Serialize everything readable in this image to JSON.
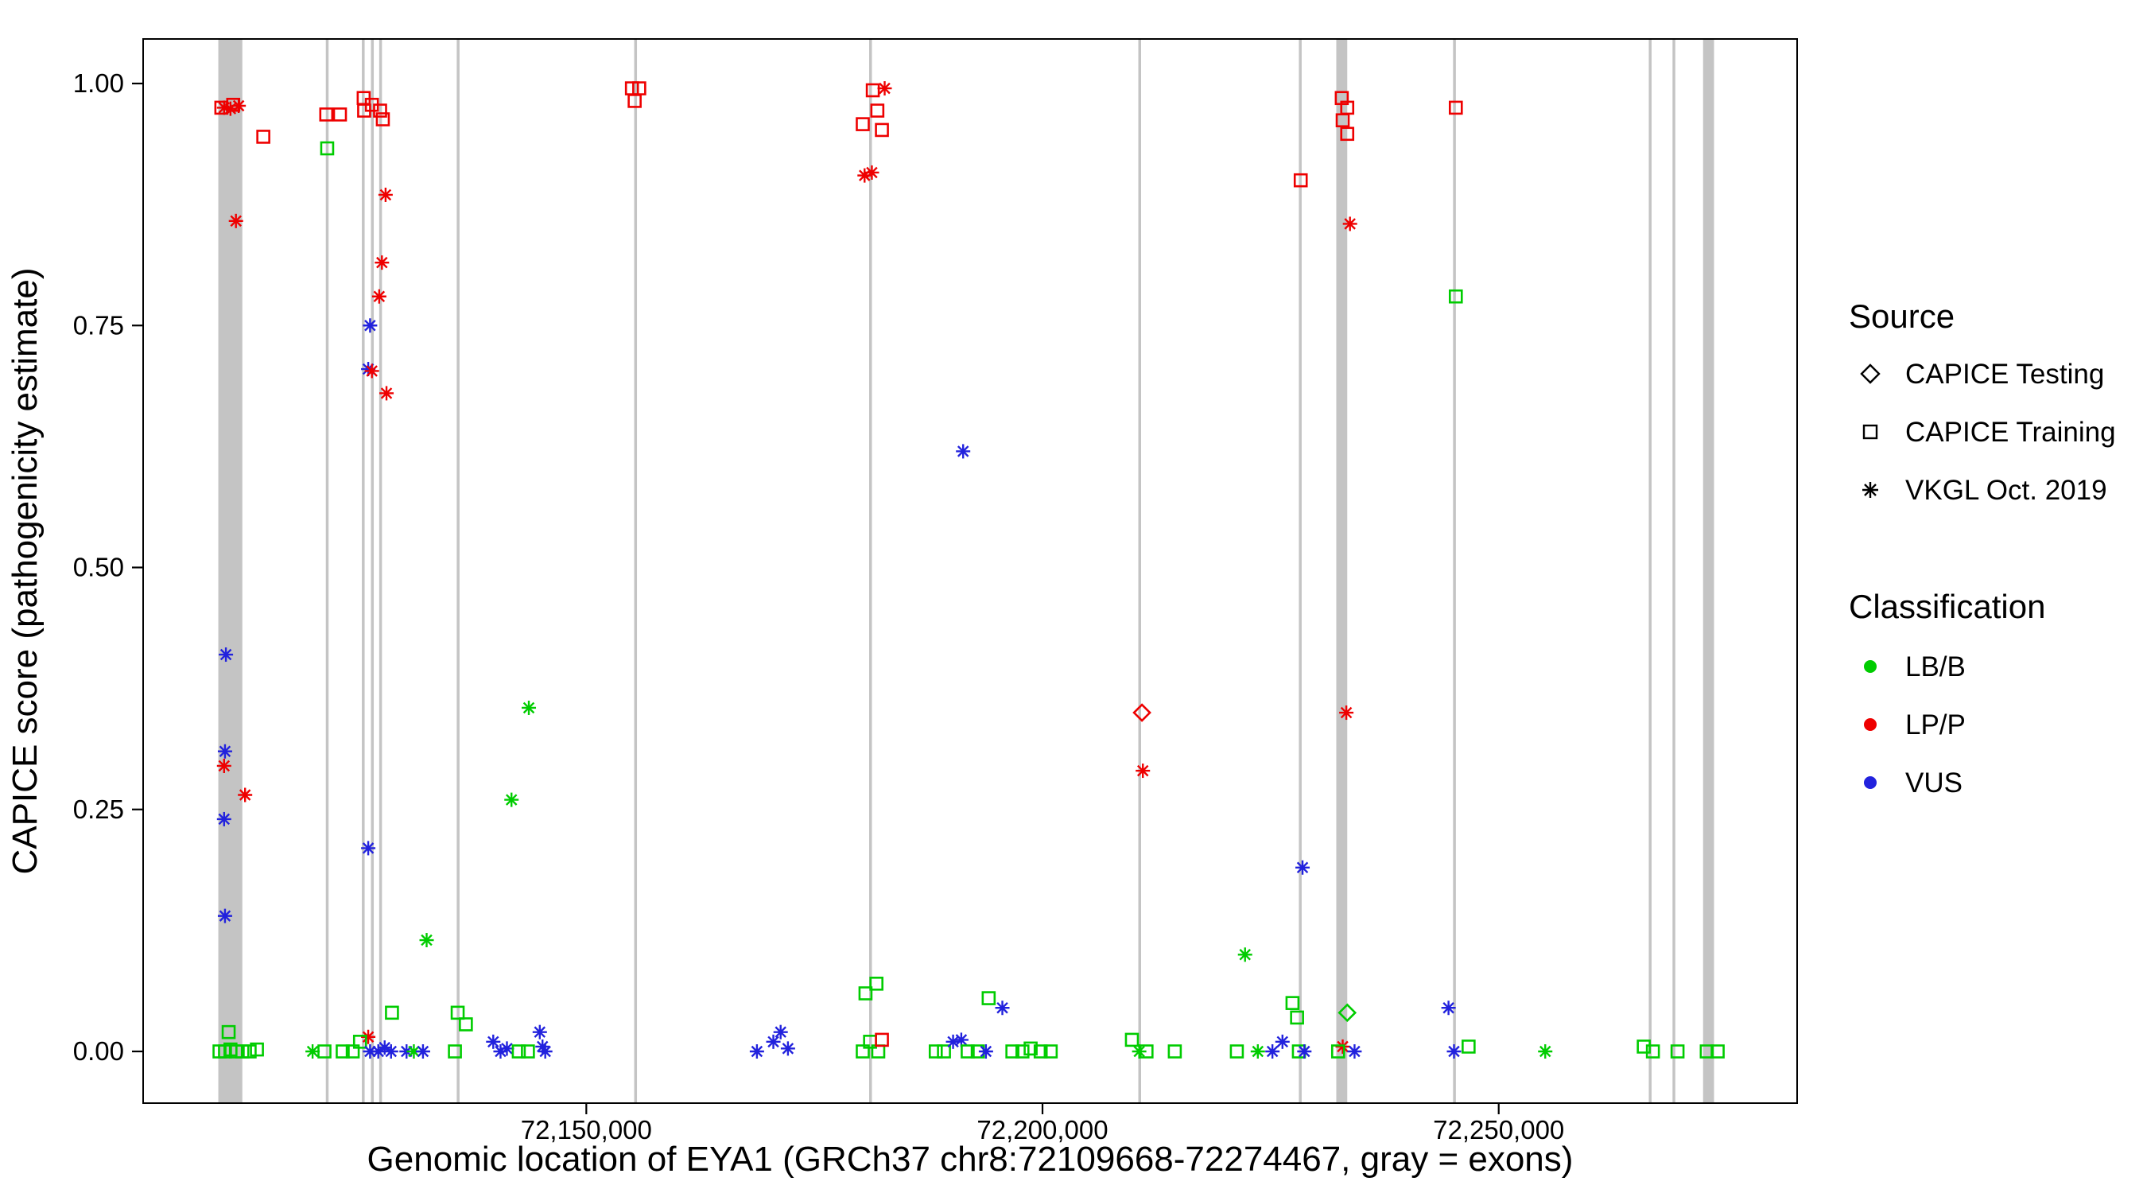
{
  "figure": {
    "y_axis": {
      "title": "CAPICE score (pathogenicity estimate)"
    },
    "x_axis": {
      "title": "Genomic location of EYA1 (GRCh37 chr8:72109668-72274467, gray = exons)"
    }
  },
  "legend": {
    "source": {
      "title": "Source",
      "items": [
        {
          "label": "CAPICE Testing",
          "shape": "diamond"
        },
        {
          "label": "CAPICE Training",
          "shape": "square"
        },
        {
          "label": "VKGL Oct. 2019",
          "shape": "asterisk"
        }
      ]
    },
    "classification": {
      "title": "Classification",
      "items": [
        {
          "label": "LB/B",
          "color": "#00cc00"
        },
        {
          "label": "LP/P",
          "color": "#ee0000"
        },
        {
          "label": "VUS",
          "color": "#2222dd"
        }
      ]
    }
  },
  "chart_data": {
    "type": "scatter",
    "title": "",
    "xlabel": "Genomic location of EYA1 (GRCh37 chr8:72109668-72274467, gray = exons)",
    "ylabel": "CAPICE score (pathogenicity estimate)",
    "xlim": [
      72109668,
      72274467
    ],
    "ylim": [
      0,
      1
    ],
    "grid": "off",
    "legend_position": "right",
    "x_ticks": [
      {
        "value": 72150000,
        "label": "72,150,000"
      },
      {
        "value": 72200000,
        "label": "72,200,000"
      },
      {
        "value": 72250000,
        "label": "72,250,000"
      }
    ],
    "y_ticks": [
      {
        "value": 0.0,
        "label": "0.00"
      },
      {
        "value": 0.25,
        "label": "0.25"
      },
      {
        "value": 0.5,
        "label": "0.50"
      },
      {
        "value": 0.75,
        "label": "0.75"
      },
      {
        "value": 1.0,
        "label": "1.00"
      }
    ],
    "shape_map": {
      "sq": "CAPICE Training",
      "di": "CAPICE Testing",
      "as": "VKGL Oct. 2019"
    },
    "class_map": {
      "B": "LB/B",
      "P": "LP/P",
      "V": "VUS"
    },
    "class_colors": {
      "B": "#00cc00",
      "P": "#ee0000",
      "V": "#2222dd"
    },
    "exon_color": "#c4c4c4",
    "exons": [
      [
        72109668,
        72112300
      ],
      [
        72121450,
        72121650
      ],
      [
        72125400,
        72125600
      ],
      [
        72126400,
        72126600
      ],
      [
        72127300,
        72127500
      ],
      [
        72135800,
        72136000
      ],
      [
        72155250,
        72155450
      ],
      [
        72181000,
        72181200
      ],
      [
        72210500,
        72210700
      ],
      [
        72228100,
        72228300
      ],
      [
        72232200,
        72233400
      ],
      [
        72245000,
        72245200
      ],
      [
        72266450,
        72266650
      ],
      [
        72269050,
        72269250
      ],
      [
        72272400,
        72273600
      ]
    ],
    "points": [
      [
        72110000,
        0.975,
        "sq",
        "P"
      ],
      [
        72111300,
        0.978,
        "sq",
        "P"
      ],
      [
        72110300,
        0.975,
        "as",
        "P"
      ],
      [
        72111000,
        0.974,
        "as",
        "P"
      ],
      [
        72111900,
        0.977,
        "as",
        "P"
      ],
      [
        72114600,
        0.945,
        "sq",
        "P"
      ],
      [
        72111600,
        0.858,
        "as",
        "P"
      ],
      [
        72110500,
        0.41,
        "as",
        "V"
      ],
      [
        72110400,
        0.31,
        "as",
        "V"
      ],
      [
        72110300,
        0.295,
        "as",
        "P"
      ],
      [
        72112600,
        0.265,
        "as",
        "P"
      ],
      [
        72110300,
        0.24,
        "as",
        "V"
      ],
      [
        72110400,
        0.14,
        "as",
        "V"
      ],
      [
        72110800,
        0.02,
        "sq",
        "B"
      ],
      [
        72109800,
        0,
        "sq",
        "B"
      ],
      [
        72110400,
        0,
        "sq",
        "B"
      ],
      [
        72111000,
        0.002,
        "sq",
        "B"
      ],
      [
        72111600,
        0,
        "sq",
        "B"
      ],
      [
        72112300,
        0,
        "sq",
        "B"
      ],
      [
        72113100,
        0,
        "sq",
        "B"
      ],
      [
        72113900,
        0.002,
        "sq",
        "B"
      ],
      [
        72120000,
        0,
        "as",
        "B"
      ],
      [
        72121300,
        0,
        "sq",
        "B"
      ],
      [
        72123300,
        0,
        "sq",
        "B"
      ],
      [
        72121500,
        0.968,
        "sq",
        "P"
      ],
      [
        72123000,
        0.968,
        "sq",
        "P"
      ],
      [
        72121600,
        0.933,
        "sq",
        "B"
      ],
      [
        72125600,
        0.985,
        "sq",
        "P"
      ],
      [
        72125650,
        0.972,
        "sq",
        "P"
      ],
      [
        72126500,
        0.978,
        "sq",
        "P"
      ],
      [
        72127400,
        0.972,
        "sq",
        "P"
      ],
      [
        72127700,
        0.963,
        "sq",
        "P"
      ],
      [
        72128000,
        0.885,
        "as",
        "P"
      ],
      [
        72127600,
        0.815,
        "as",
        "P"
      ],
      [
        72127300,
        0.78,
        "as",
        "P"
      ],
      [
        72126300,
        0.75,
        "as",
        "V"
      ],
      [
        72126100,
        0.705,
        "as",
        "V"
      ],
      [
        72126500,
        0.703,
        "as",
        "P"
      ],
      [
        72128100,
        0.68,
        "as",
        "P"
      ],
      [
        72126100,
        0.21,
        "as",
        "V"
      ],
      [
        72126100,
        0.015,
        "as",
        "P"
      ],
      [
        72124400,
        0,
        "sq",
        "B"
      ],
      [
        72125200,
        0.01,
        "sq",
        "B"
      ],
      [
        72126300,
        0,
        "as",
        "V"
      ],
      [
        72127200,
        0,
        "as",
        "V"
      ],
      [
        72127900,
        0.004,
        "as",
        "V"
      ],
      [
        72128600,
        0,
        "as",
        "V"
      ],
      [
        72128700,
        0.04,
        "sq",
        "B"
      ],
      [
        72130300,
        0,
        "as",
        "V"
      ],
      [
        72131100,
        0,
        "as",
        "B"
      ],
      [
        72132100,
        0,
        "as",
        "V"
      ],
      [
        72132500,
        0.115,
        "as",
        "B"
      ],
      [
        72135900,
        0.04,
        "sq",
        "B"
      ],
      [
        72136800,
        0.028,
        "sq",
        "B"
      ],
      [
        72135600,
        0,
        "sq",
        "B"
      ],
      [
        72143700,
        0.355,
        "as",
        "B"
      ],
      [
        72141800,
        0.26,
        "as",
        "B"
      ],
      [
        72139800,
        0.01,
        "as",
        "V"
      ],
      [
        72140600,
        0,
        "as",
        "V"
      ],
      [
        72141300,
        0.003,
        "as",
        "V"
      ],
      [
        72142600,
        0,
        "sq",
        "B"
      ],
      [
        72143600,
        0,
        "sq",
        "B"
      ],
      [
        72144900,
        0.02,
        "as",
        "V"
      ],
      [
        72145200,
        0.005,
        "as",
        "V"
      ],
      [
        72145500,
        0,
        "as",
        "V"
      ],
      [
        72155000,
        0.995,
        "sq",
        "P"
      ],
      [
        72155800,
        0.995,
        "sq",
        "P"
      ],
      [
        72155300,
        0.982,
        "sq",
        "P"
      ],
      [
        72168700,
        0,
        "as",
        "V"
      ],
      [
        72170500,
        0.01,
        "as",
        "V"
      ],
      [
        72171300,
        0.02,
        "as",
        "V"
      ],
      [
        72172100,
        0.003,
        "as",
        "V"
      ],
      [
        72180300,
        0.958,
        "sq",
        "P"
      ],
      [
        72181400,
        0.993,
        "sq",
        "P"
      ],
      [
        72181900,
        0.972,
        "sq",
        "P"
      ],
      [
        72182400,
        0.952,
        "sq",
        "P"
      ],
      [
        72182700,
        0.995,
        "as",
        "P"
      ],
      [
        72180500,
        0.905,
        "as",
        "P"
      ],
      [
        72181300,
        0.908,
        "as",
        "P"
      ],
      [
        72180600,
        0.06,
        "sq",
        "B"
      ],
      [
        72181800,
        0.07,
        "sq",
        "B"
      ],
      [
        72180300,
        0,
        "sq",
        "B"
      ],
      [
        72181100,
        0.01,
        "sq",
        "B"
      ],
      [
        72182000,
        0,
        "sq",
        "B"
      ],
      [
        72182400,
        0.012,
        "sq",
        "P"
      ],
      [
        72191300,
        0.62,
        "as",
        "V"
      ],
      [
        72188300,
        0,
        "sq",
        "B"
      ],
      [
        72189200,
        0,
        "sq",
        "B"
      ],
      [
        72190200,
        0.01,
        "as",
        "V"
      ],
      [
        72191100,
        0.012,
        "as",
        "V"
      ],
      [
        72191800,
        0,
        "sq",
        "B"
      ],
      [
        72192900,
        0,
        "sq",
        "B"
      ],
      [
        72193800,
        0,
        "as",
        "V"
      ],
      [
        72194100,
        0.055,
        "sq",
        "B"
      ],
      [
        72195600,
        0.045,
        "as",
        "V"
      ],
      [
        72196700,
        0,
        "sq",
        "B"
      ],
      [
        72197800,
        0,
        "sq",
        "B"
      ],
      [
        72198700,
        0.003,
        "sq",
        "B"
      ],
      [
        72199800,
        0,
        "sq",
        "B"
      ],
      [
        72200900,
        0,
        "sq",
        "B"
      ],
      [
        72210900,
        0.35,
        "di",
        "P"
      ],
      [
        72211000,
        0.29,
        "as",
        "P"
      ],
      [
        72209800,
        0.012,
        "sq",
        "B"
      ],
      [
        72210600,
        0,
        "as",
        "B"
      ],
      [
        72211400,
        0,
        "sq",
        "B"
      ],
      [
        72214500,
        0,
        "sq",
        "B"
      ],
      [
        72222200,
        0.1,
        "as",
        "B"
      ],
      [
        72221300,
        0,
        "sq",
        "B"
      ],
      [
        72223600,
        0,
        "as",
        "B"
      ],
      [
        72225200,
        0,
        "as",
        "V"
      ],
      [
        72226300,
        0.01,
        "as",
        "V"
      ],
      [
        72227400,
        0.05,
        "sq",
        "B"
      ],
      [
        72227900,
        0.035,
        "sq",
        "B"
      ],
      [
        72228100,
        0,
        "sq",
        "B"
      ],
      [
        72228700,
        0,
        "as",
        "V"
      ],
      [
        72228300,
        0.9,
        "sq",
        "P"
      ],
      [
        72228500,
        0.19,
        "as",
        "V"
      ],
      [
        72232800,
        0.985,
        "sq",
        "P"
      ],
      [
        72233400,
        0.975,
        "sq",
        "P"
      ],
      [
        72232900,
        0.962,
        "sq",
        "P"
      ],
      [
        72233400,
        0.948,
        "sq",
        "P"
      ],
      [
        72233700,
        0.855,
        "as",
        "P"
      ],
      [
        72233300,
        0.35,
        "as",
        "P"
      ],
      [
        72233400,
        0.04,
        "di",
        "B"
      ],
      [
        72232900,
        0.005,
        "as",
        "P"
      ],
      [
        72234200,
        0,
        "as",
        "V"
      ],
      [
        72232400,
        0,
        "sq",
        "B"
      ],
      [
        72245300,
        0.975,
        "sq",
        "P"
      ],
      [
        72245300,
        0.78,
        "sq",
        "B"
      ],
      [
        72244500,
        0.045,
        "as",
        "V"
      ],
      [
        72245100,
        0,
        "as",
        "V"
      ],
      [
        72246700,
        0.005,
        "sq",
        "B"
      ],
      [
        72255100,
        0,
        "as",
        "B"
      ],
      [
        72265900,
        0.005,
        "sq",
        "B"
      ],
      [
        72266900,
        0,
        "sq",
        "B"
      ],
      [
        72269600,
        0,
        "sq",
        "B"
      ],
      [
        72272800,
        0,
        "sq",
        "B"
      ],
      [
        72274000,
        0,
        "sq",
        "B"
      ]
    ]
  }
}
